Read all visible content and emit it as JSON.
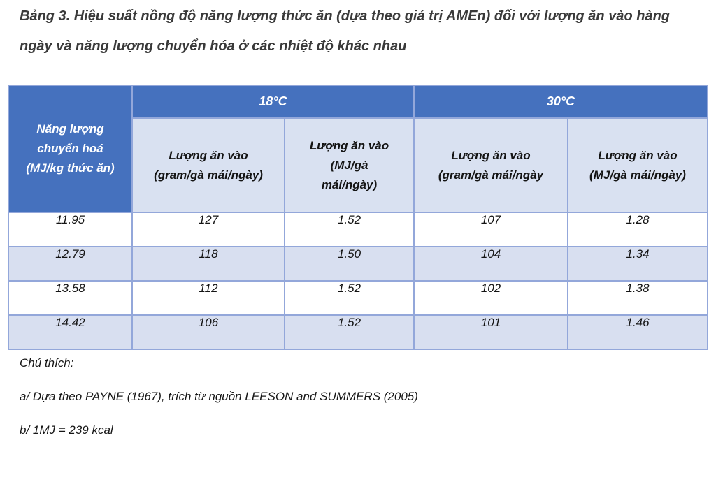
{
  "title": "Bảng 3. Hiệu suất nồng độ năng lượng thức ăn (dựa theo giá trị AMEn) đối với lượng ăn vào hàng ngày và năng lượng chuyển hóa ở các nhiệt độ khác nhau",
  "table": {
    "corner_header": "Năng lượng\nchuyển hoá\n(MJ/kg thức ăn)",
    "groups": [
      {
        "label": "18°C"
      },
      {
        "label": "30°C"
      }
    ],
    "sub_headers": [
      "Lượng ăn vào\n(gram/gà mái/ngày)",
      "Lượng ăn vào\n(MJ/gà\nmái/ngày)",
      "Lượng ăn vào\n(gram/gà mái/ngày",
      "Lượng ăn vào\n(MJ/gà mái/ngày)"
    ],
    "rows": [
      [
        "11.95",
        "127",
        "1.52",
        "107",
        "1.28"
      ],
      [
        "12.79",
        "118",
        "1.50",
        "104",
        "1.34"
      ],
      [
        "13.58",
        "112",
        "1.52",
        "102",
        "1.38"
      ],
      [
        "14.42",
        "106",
        "1.52",
        "101",
        "1.46"
      ]
    ]
  },
  "notes": {
    "heading": "Chú thích:",
    "items": [
      "a/ Dựa theo PAYNE (1967), trích từ nguồn LEESON and SUMMERS (2005)",
      "b/ 1MJ = 239 kcal"
    ]
  },
  "colors": {
    "header_blue": "#4571be",
    "subheader_blue": "#d9e1f1",
    "stripe_blue": "#d8dff0",
    "border_blue": "#93a7da",
    "title_text": "#3a3a3a"
  }
}
